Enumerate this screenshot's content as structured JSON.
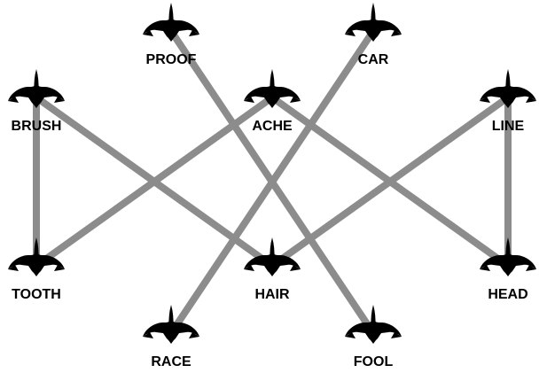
{
  "colors": {
    "edge": "#8c8c8c",
    "bird": "#000000",
    "label": "#000000",
    "background": "#ffffff"
  },
  "icon": "flying-bird-icon",
  "nodes": [
    {
      "id": "proof",
      "label": "PROOF"
    },
    {
      "id": "car",
      "label": "CAR"
    },
    {
      "id": "brush",
      "label": "BRUSH"
    },
    {
      "id": "ache",
      "label": "ACHE"
    },
    {
      "id": "line",
      "label": "LINE"
    },
    {
      "id": "tooth",
      "label": "TOOTH"
    },
    {
      "id": "hair",
      "label": "HAIR"
    },
    {
      "id": "head",
      "label": "HEAD"
    },
    {
      "id": "race",
      "label": "RACE"
    },
    {
      "id": "fool",
      "label": "FOOL"
    }
  ],
  "edges": [
    [
      "brush",
      "tooth"
    ],
    [
      "brush",
      "hair"
    ],
    [
      "proof",
      "fool"
    ],
    [
      "car",
      "race"
    ],
    [
      "ache",
      "tooth"
    ],
    [
      "ache",
      "head"
    ],
    [
      "line",
      "hair"
    ],
    [
      "line",
      "head"
    ]
  ]
}
